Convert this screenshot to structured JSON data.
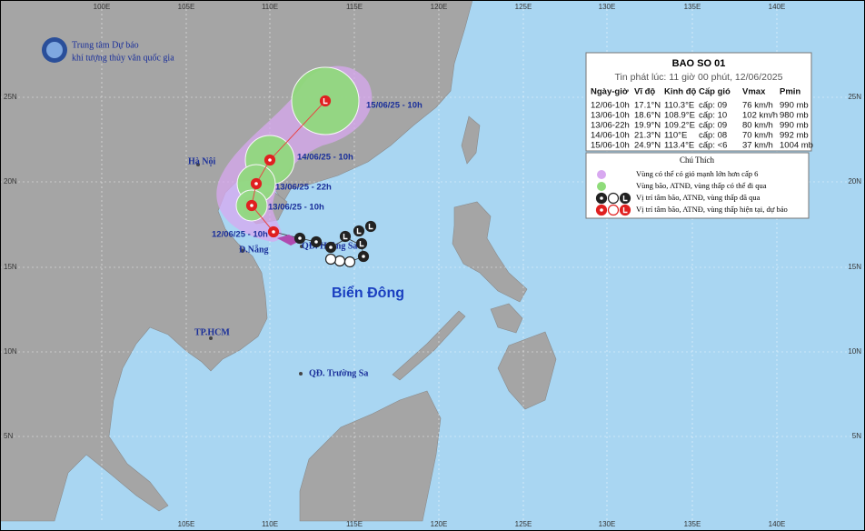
{
  "agency": [
    "Trung tâm Dự báo",
    "khí tượng thủy văn quốc gia"
  ],
  "header": {
    "title": "BAO SO 01",
    "subtitle": "Tin phát lúc: 11 giờ 00 phút, 12/06/2025"
  },
  "table": {
    "columns": [
      "Ngày-giờ",
      "Vĩ độ",
      "Kinh độ",
      "Cấp gió",
      "Vmax",
      "Pmin"
    ],
    "rows": [
      [
        "12/06-10h",
        "17.1°N",
        "110.3°E",
        "cấp: 09",
        "76 km/h",
        "990 mb"
      ],
      [
        "13/06-10h",
        "18.6°N",
        "108.9°E",
        "cấp: 10",
        "102 km/h",
        "980 mb"
      ],
      [
        "13/06-22h",
        "19.9°N",
        "109.2°E",
        "cấp: 09",
        "80 km/h",
        "990 mb"
      ],
      [
        "14/06-10h",
        "21.3°N",
        "110°E",
        "cấp: 08",
        "70 km/h",
        "992 mb"
      ],
      [
        "15/06-10h",
        "24.9°N",
        "113.4°E",
        "cấp: <6",
        "37 km/h",
        "1004 mb"
      ]
    ]
  },
  "legend": {
    "title": "Chú Thích",
    "items": [
      "Vùng có thể có gió mạnh lớn hơn cấp 6",
      "Vùng bão, ATNĐ, vùng thấp có thể đi qua",
      "Vị trí tâm bão, ATNĐ, vùng thấp đã qua",
      "Vị trí tâm bão, ATNĐ, vùng thấp hiện tại, dự báo"
    ]
  },
  "places": [
    "Hà Nội",
    "Đ.Nẵng",
    "TP.HCM",
    "QĐ. Hoàng Sa",
    "QĐ. Trường Sa",
    "Biển Đông"
  ],
  "track_labels": [
    "12/06/25 - 10h",
    "13/06/25 - 10h",
    "13/06/25 - 22h",
    "14/06/25 - 10h",
    "15/06/25 - 10h"
  ],
  "grid_labels": {
    "top": [
      "100E",
      "105E",
      "110E",
      "115E",
      "120E",
      "125E",
      "130E",
      "135E",
      "140E"
    ],
    "bottom": [
      "105E",
      "110E",
      "115E",
      "120E",
      "125E",
      "130E",
      "135E",
      "140E"
    ],
    "left": [
      "25N",
      "20N",
      "15N",
      "10N",
      "5N"
    ],
    "right": [
      "25N",
      "20N",
      "15N",
      "10N",
      "5N"
    ]
  }
}
